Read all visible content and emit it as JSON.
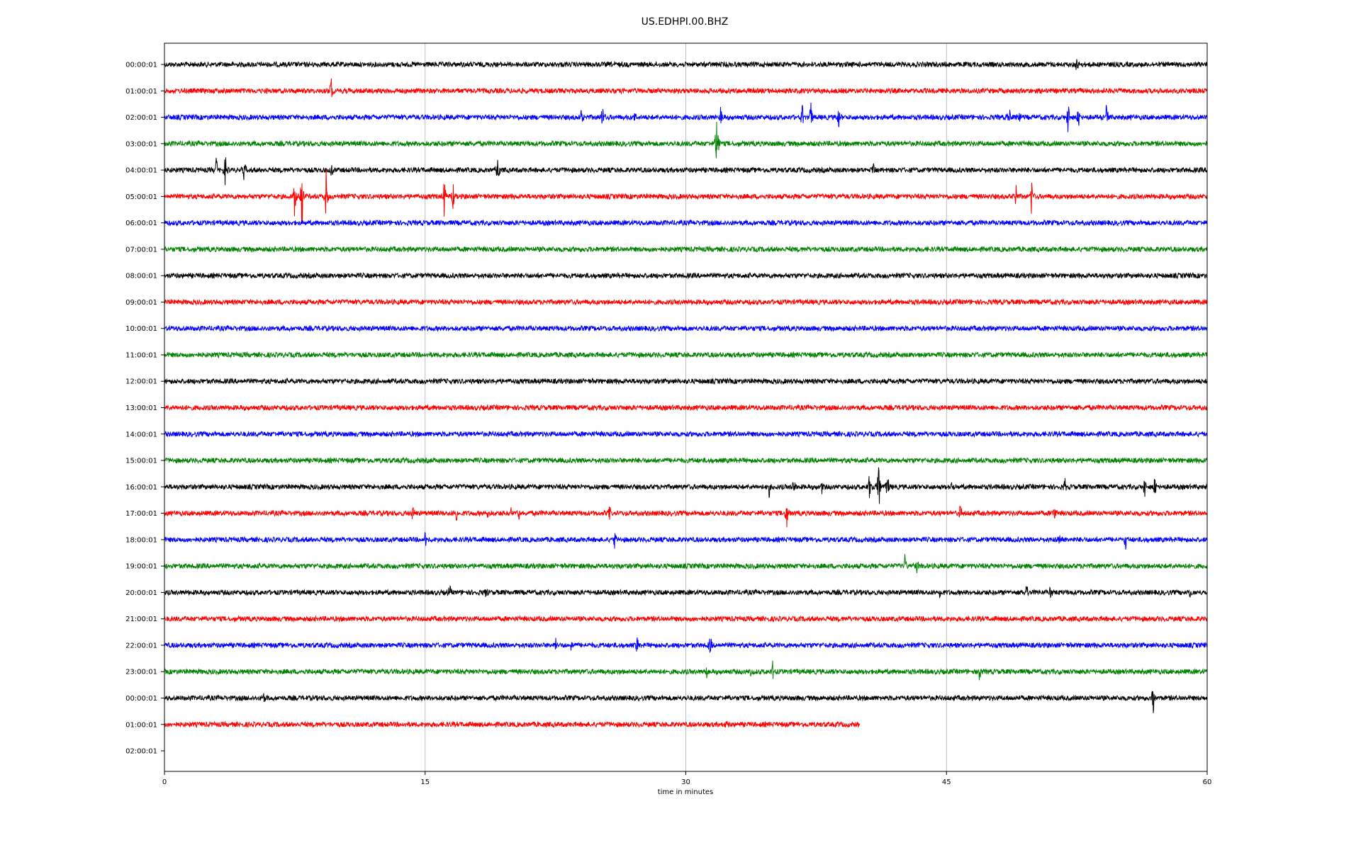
{
  "chart_data": {
    "type": "line",
    "title": "US.EDHPI.00.BHZ",
    "xlabel": "time in minutes",
    "ylabel": "",
    "xlim": [
      0,
      60
    ],
    "x_ticks": [
      0,
      15,
      30,
      45,
      60
    ],
    "x_tick_labels": [
      "0",
      "15",
      "30",
      "45",
      "60"
    ],
    "grid": "vertical lines at 15, 30, 45",
    "row_labels": [
      "00:00:01",
      "01:00:01",
      "02:00:01",
      "03:00:01",
      "04:00:01",
      "05:00:01",
      "06:00:01",
      "07:00:01",
      "08:00:01",
      "09:00:01",
      "10:00:01",
      "11:00:01",
      "12:00:01",
      "13:00:01",
      "14:00:01",
      "15:00:01",
      "16:00:01",
      "17:00:01",
      "18:00:01",
      "19:00:01",
      "20:00:01",
      "21:00:01",
      "22:00:01",
      "23:00:01",
      "00:00:01",
      "01:00:01",
      "02:00:01"
    ],
    "color_cycle": [
      "#000000",
      "#ff0000",
      "#0000ff",
      "#008000"
    ],
    "rows": [
      {
        "end": 60,
        "events": [
          [
            52.5,
            0.3
          ]
        ]
      },
      {
        "end": 60,
        "events": [
          [
            9.6,
            0.6
          ]
        ]
      },
      {
        "end": 60,
        "events": [
          [
            24,
            0.6
          ],
          [
            25.2,
            0.6
          ],
          [
            27.1,
            0.5
          ],
          [
            32,
            0.5
          ],
          [
            36.7,
            0.6
          ],
          [
            37.2,
            0.8
          ],
          [
            38.8,
            0.6
          ],
          [
            48.6,
            0.5
          ],
          [
            49.2,
            0.4
          ],
          [
            52,
            0.8
          ],
          [
            52.6,
            0.5
          ],
          [
            54.2,
            0.7
          ]
        ]
      },
      {
        "end": 60,
        "events": [
          [
            31.8,
            1.9
          ]
        ]
      },
      {
        "end": 60,
        "events": [
          [
            3,
            0.7
          ],
          [
            3.5,
            0.8
          ],
          [
            4.6,
            0.6
          ],
          [
            9.6,
            0.4
          ],
          [
            19.2,
            0.8
          ],
          [
            40.8,
            0.3
          ]
        ]
      },
      {
        "end": 60,
        "events": [
          [
            7.5,
            1.0
          ],
          [
            7.9,
            1.9
          ],
          [
            9.3,
            1.1
          ],
          [
            16.1,
            1.0
          ],
          [
            16.6,
            0.6
          ],
          [
            49,
            0.6
          ],
          [
            49.9,
            0.9
          ]
        ]
      },
      {
        "end": 60,
        "events": []
      },
      {
        "end": 60,
        "events": []
      },
      {
        "end": 60,
        "events": []
      },
      {
        "end": 60,
        "events": []
      },
      {
        "end": 60,
        "events": []
      },
      {
        "end": 60,
        "events": []
      },
      {
        "end": 60,
        "events": []
      },
      {
        "end": 60,
        "events": []
      },
      {
        "end": 60,
        "events": []
      },
      {
        "end": 60,
        "events": []
      },
      {
        "end": 60,
        "events": [
          [
            34.8,
            0.4
          ],
          [
            36.2,
            0.6
          ],
          [
            37.8,
            0.4
          ],
          [
            40.6,
            1.0
          ],
          [
            41.1,
            1.3
          ],
          [
            41.6,
            0.8
          ],
          [
            45.3,
            0.3
          ],
          [
            51.8,
            0.4
          ],
          [
            56.4,
            0.5
          ],
          [
            57,
            0.5
          ]
        ]
      },
      {
        "end": 60,
        "events": [
          [
            14.3,
            0.4
          ],
          [
            16.8,
            0.6
          ],
          [
            18.6,
            0.4
          ],
          [
            19.9,
            0.4
          ],
          [
            20.4,
            0.7
          ],
          [
            25.6,
            0.4
          ],
          [
            35.8,
            0.8
          ],
          [
            45.8,
            0.4
          ],
          [
            51.2,
            0.5
          ]
        ]
      },
      {
        "end": 60,
        "events": [
          [
            15,
            0.4
          ],
          [
            25.9,
            0.4
          ],
          [
            51.5,
            0.3
          ],
          [
            55.3,
            0.4
          ]
        ]
      },
      {
        "end": 60,
        "events": [
          [
            42.6,
            0.7
          ],
          [
            43.3,
            0.4
          ]
        ]
      },
      {
        "end": 60,
        "events": [
          [
            16.4,
            0.4
          ],
          [
            18.5,
            0.5
          ],
          [
            44.6,
            0.4
          ],
          [
            49.6,
            0.6
          ],
          [
            51,
            0.5
          ],
          [
            59,
            0.3
          ]
        ]
      },
      {
        "end": 60,
        "events": []
      },
      {
        "end": 60,
        "events": [
          [
            22.5,
            0.3
          ],
          [
            23.4,
            0.3
          ],
          [
            27.2,
            0.4
          ],
          [
            31.4,
            0.6
          ]
        ]
      },
      {
        "end": 60,
        "events": [
          [
            31.2,
            0.4
          ],
          [
            33.8,
            0.5
          ],
          [
            35,
            0.4
          ],
          [
            46.9,
            0.5
          ]
        ]
      },
      {
        "end": 60,
        "events": [
          [
            5.7,
            0.3
          ],
          [
            56.9,
            0.8
          ]
        ]
      },
      {
        "end": 40,
        "events": [
          [
            32.3,
            0.2
          ]
        ]
      },
      {
        "end": 0,
        "events": []
      }
    ]
  }
}
